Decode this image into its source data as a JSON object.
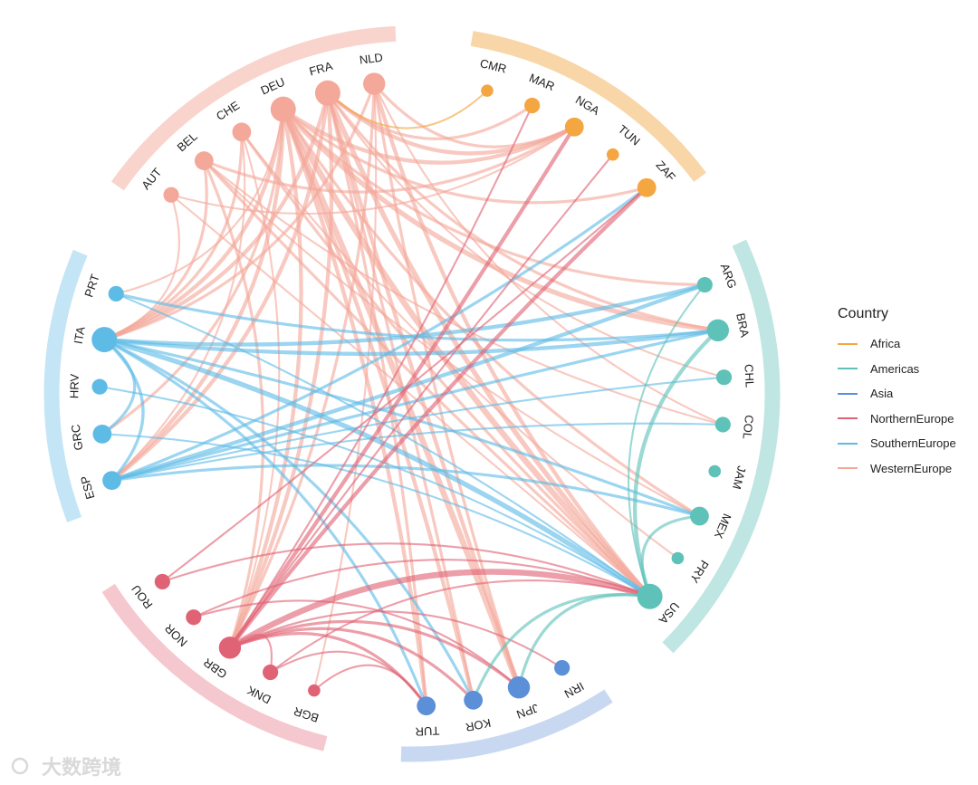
{
  "chart_data": {
    "type": "chord",
    "legend_title": "Country",
    "legend_position": "right",
    "groups": [
      {
        "name": "Africa",
        "color": "#f4a641",
        "arc_color": "#f8d6a8"
      },
      {
        "name": "Americas",
        "color": "#5fc2b9",
        "arc_color": "#bfe6e3"
      },
      {
        "name": "Asia",
        "color": "#5b8fd8",
        "arc_color": "#c9d8f1"
      },
      {
        "name": "NorthernEurope",
        "color": "#e06275",
        "arc_color": "#f5c8cf"
      },
      {
        "name": "SouthernEurope",
        "color": "#5dbbe6",
        "arc_color": "#c4e5f5"
      },
      {
        "name": "WesternEurope",
        "color": "#f3a89a",
        "arc_color": "#f9d4cd"
      }
    ],
    "nodes": [
      {
        "id": "CMR",
        "group": "Africa",
        "weight": 1
      },
      {
        "id": "MAR",
        "group": "Africa",
        "weight": 2
      },
      {
        "id": "NGA",
        "group": "Africa",
        "weight": 3
      },
      {
        "id": "TUN",
        "group": "Africa",
        "weight": 1
      },
      {
        "id": "ZAF",
        "group": "Africa",
        "weight": 3
      },
      {
        "id": "ARG",
        "group": "Americas",
        "weight": 2
      },
      {
        "id": "BRA",
        "group": "Americas",
        "weight": 4
      },
      {
        "id": "CHL",
        "group": "Americas",
        "weight": 2
      },
      {
        "id": "COL",
        "group": "Americas",
        "weight": 2
      },
      {
        "id": "JAM",
        "group": "Americas",
        "weight": 1
      },
      {
        "id": "MEX",
        "group": "Americas",
        "weight": 3
      },
      {
        "id": "PRY",
        "group": "Americas",
        "weight": 1
      },
      {
        "id": "USA",
        "group": "Americas",
        "weight": 5
      },
      {
        "id": "IRN",
        "group": "Asia",
        "weight": 2
      },
      {
        "id": "JPN",
        "group": "Asia",
        "weight": 4
      },
      {
        "id": "KOR",
        "group": "Asia",
        "weight": 3
      },
      {
        "id": "TUR",
        "group": "Asia",
        "weight": 3
      },
      {
        "id": "BGR",
        "group": "NorthernEurope",
        "weight": 1
      },
      {
        "id": "DNK",
        "group": "NorthernEurope",
        "weight": 2
      },
      {
        "id": "GBR",
        "group": "NorthernEurope",
        "weight": 4
      },
      {
        "id": "NOR",
        "group": "NorthernEurope",
        "weight": 2
      },
      {
        "id": "ROU",
        "group": "NorthernEurope",
        "weight": 2
      },
      {
        "id": "ESP",
        "group": "SouthernEurope",
        "weight": 3
      },
      {
        "id": "GRC",
        "group": "SouthernEurope",
        "weight": 3
      },
      {
        "id": "HRV",
        "group": "SouthernEurope",
        "weight": 2
      },
      {
        "id": "ITA",
        "group": "SouthernEurope",
        "weight": 5
      },
      {
        "id": "PRT",
        "group": "SouthernEurope",
        "weight": 2
      },
      {
        "id": "AUT",
        "group": "WesternEurope",
        "weight": 2
      },
      {
        "id": "BEL",
        "group": "WesternEurope",
        "weight": 3
      },
      {
        "id": "CHE",
        "group": "WesternEurope",
        "weight": 3
      },
      {
        "id": "DEU",
        "group": "WesternEurope",
        "weight": 5
      },
      {
        "id": "FRA",
        "group": "WesternEurope",
        "weight": 5
      },
      {
        "id": "NLD",
        "group": "WesternEurope",
        "weight": 4
      }
    ],
    "links": [
      {
        "source": "DEU",
        "target": "USA",
        "value": 5
      },
      {
        "source": "DEU",
        "target": "JPN",
        "value": 5
      },
      {
        "source": "DEU",
        "target": "BRA",
        "value": 4
      },
      {
        "source": "DEU",
        "target": "KOR",
        "value": 3
      },
      {
        "source": "DEU",
        "target": "TUR",
        "value": 3
      },
      {
        "source": "DEU",
        "target": "NGA",
        "value": 3
      },
      {
        "source": "DEU",
        "target": "ITA",
        "value": 3
      },
      {
        "source": "DEU",
        "target": "ESP",
        "value": 3
      },
      {
        "source": "DEU",
        "target": "GBR",
        "value": 3
      },
      {
        "source": "DEU",
        "target": "ZAF",
        "value": 2
      },
      {
        "source": "DEU",
        "target": "MEX",
        "value": 2
      },
      {
        "source": "DEU",
        "target": "ARG",
        "value": 2
      },
      {
        "source": "DEU",
        "target": "GRC",
        "value": 2
      },
      {
        "source": "DEU",
        "target": "PRT",
        "value": 1
      },
      {
        "source": "FRA",
        "target": "USA",
        "value": 4
      },
      {
        "source": "FRA",
        "target": "JPN",
        "value": 3
      },
      {
        "source": "FRA",
        "target": "KOR",
        "value": 2
      },
      {
        "source": "FRA",
        "target": "NGA",
        "value": 3
      },
      {
        "source": "FRA",
        "target": "ITA",
        "value": 3
      },
      {
        "source": "FRA",
        "target": "ESP",
        "value": 3
      },
      {
        "source": "FRA",
        "target": "GBR",
        "value": 3
      },
      {
        "source": "FRA",
        "target": "BRA",
        "value": 2
      },
      {
        "source": "FRA",
        "target": "CHL",
        "value": 1
      },
      {
        "source": "FRA",
        "target": "MAR",
        "value": 2
      },
      {
        "source": "FRA",
        "target": "TUR",
        "value": 2
      },
      {
        "source": "NLD",
        "target": "USA",
        "value": 3
      },
      {
        "source": "NLD",
        "target": "GBR",
        "value": 2
      },
      {
        "source": "NLD",
        "target": "NGA",
        "value": 2
      },
      {
        "source": "NLD",
        "target": "JPN",
        "value": 2
      },
      {
        "source": "NLD",
        "target": "ITA",
        "value": 2
      },
      {
        "source": "NLD",
        "target": "BGR",
        "value": 1
      },
      {
        "source": "NLD",
        "target": "COL",
        "value": 1
      },
      {
        "source": "BEL",
        "target": "USA",
        "value": 2
      },
      {
        "source": "BEL",
        "target": "GBR",
        "value": 2
      },
      {
        "source": "BEL",
        "target": "ITA",
        "value": 2
      },
      {
        "source": "BEL",
        "target": "NGA",
        "value": 2
      },
      {
        "source": "BEL",
        "target": "COL",
        "value": 1
      },
      {
        "source": "BEL",
        "target": "MEX",
        "value": 1
      },
      {
        "source": "CHE",
        "target": "USA",
        "value": 2
      },
      {
        "source": "CHE",
        "target": "ITA",
        "value": 2
      },
      {
        "source": "CHE",
        "target": "ESP",
        "value": 1
      },
      {
        "source": "CHE",
        "target": "GBR",
        "value": 1
      },
      {
        "source": "CHE",
        "target": "PRY",
        "value": 1
      },
      {
        "source": "AUT",
        "target": "ITA",
        "value": 1
      },
      {
        "source": "AUT",
        "target": "NGA",
        "value": 1
      },
      {
        "source": "AUT",
        "target": "USA",
        "value": 1
      },
      {
        "source": "ITA",
        "target": "USA",
        "value": 4
      },
      {
        "source": "ITA",
        "target": "BRA",
        "value": 3
      },
      {
        "source": "ITA",
        "target": "ARG",
        "value": 3
      },
      {
        "source": "ITA",
        "target": "MEX",
        "value": 2
      },
      {
        "source": "ITA",
        "target": "GRC",
        "value": 2
      },
      {
        "source": "ITA",
        "target": "ESP",
        "value": 2
      },
      {
        "source": "ITA",
        "target": "TUR",
        "value": 2
      },
      {
        "source": "ITA",
        "target": "KOR",
        "value": 2
      },
      {
        "source": "ESP",
        "target": "ARG",
        "value": 3
      },
      {
        "source": "ESP",
        "target": "BRA",
        "value": 2
      },
      {
        "source": "ESP",
        "target": "ZAF",
        "value": 2
      },
      {
        "source": "ESP",
        "target": "MEX",
        "value": 2
      },
      {
        "source": "ESP",
        "target": "COL",
        "value": 1
      },
      {
        "source": "ESP",
        "target": "CHL",
        "value": 1
      },
      {
        "source": "PRT",
        "target": "BRA",
        "value": 2
      },
      {
        "source": "PRT",
        "target": "USA",
        "value": 1
      },
      {
        "source": "GRC",
        "target": "USA",
        "value": 1
      },
      {
        "source": "HRV",
        "target": "USA",
        "value": 1
      },
      {
        "source": "GBR",
        "target": "USA",
        "value": 5
      },
      {
        "source": "GBR",
        "target": "ZAF",
        "value": 3
      },
      {
        "source": "GBR",
        "target": "NGA",
        "value": 3
      },
      {
        "source": "GBR",
        "target": "KOR",
        "value": 2
      },
      {
        "source": "GBR",
        "target": "JPN",
        "value": 2
      },
      {
        "source": "GBR",
        "target": "TUR",
        "value": 2
      },
      {
        "source": "GBR",
        "target": "MAR",
        "value": 1
      },
      {
        "source": "GBR",
        "target": "TUN",
        "value": 1
      },
      {
        "source": "GBR",
        "target": "DNK",
        "value": 1
      },
      {
        "source": "GBR",
        "target": "IRN",
        "value": 1
      },
      {
        "source": "NOR",
        "target": "USA",
        "value": 1
      },
      {
        "source": "NOR",
        "target": "JPN",
        "value": 1
      },
      {
        "source": "ROU",
        "target": "USA",
        "value": 1
      },
      {
        "source": "ROU",
        "target": "ZAF",
        "value": 1
      },
      {
        "source": "DNK",
        "target": "USA",
        "value": 1
      },
      {
        "source": "DNK",
        "target": "TUR",
        "value": 1
      },
      {
        "source": "BGR",
        "target": "TUR",
        "value": 1
      },
      {
        "source": "USA",
        "target": "BRA",
        "value": 3
      },
      {
        "source": "USA",
        "target": "JPN",
        "value": 2
      },
      {
        "source": "USA",
        "target": "KOR",
        "value": 2
      },
      {
        "source": "USA",
        "target": "MEX",
        "value": 2
      },
      {
        "source": "ARG",
        "target": "USA",
        "value": 1
      },
      {
        "source": "CMR",
        "target": "FRA",
        "value": 1
      }
    ]
  },
  "watermark": "大数跨境"
}
